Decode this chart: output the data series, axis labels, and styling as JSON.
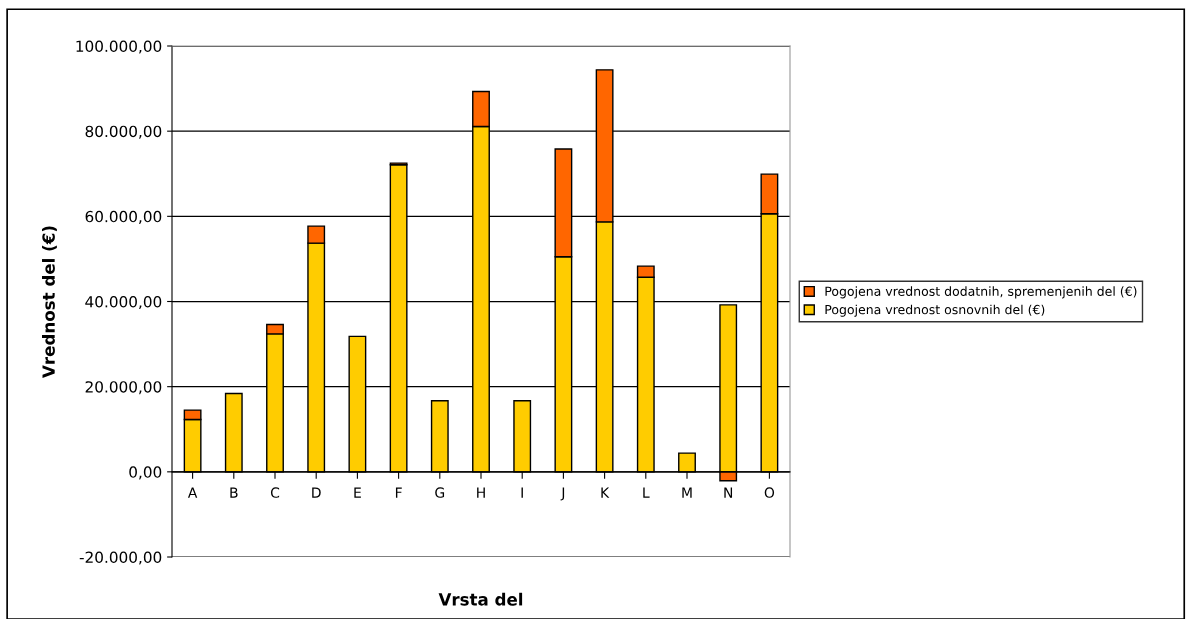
{
  "chart_data": {
    "type": "bar",
    "stacked": true,
    "xlabel": "Vrsta del",
    "ylabel": "Vrednost del (€)",
    "categories": [
      "A",
      "B",
      "C",
      "D",
      "E",
      "F",
      "G",
      "H",
      "I",
      "J",
      "K",
      "L",
      "M",
      "N",
      "O"
    ],
    "series": [
      {
        "name": "Pogojena vrednost osnovnih del (€)",
        "color": "#ffcc00",
        "values": [
          12300,
          18400,
          32400,
          53700,
          31800,
          72100,
          16700,
          81100,
          16700,
          50500,
          58700,
          45700,
          4400,
          39200,
          60600
        ]
      },
      {
        "name": "Pogojena vrednost dodatnih, spremenjenih del (€)",
        "color": "#ff6600",
        "values": [
          2200,
          null,
          2200,
          4000,
          null,
          400,
          null,
          8200,
          null,
          25300,
          35700,
          2600,
          null,
          -2100,
          9300
        ]
      }
    ],
    "ylim": [
      -20000,
      100000
    ],
    "yticks": [
      {
        "value": -20000,
        "label": "-20.000,00"
      },
      {
        "value": 0,
        "label": "0,00"
      },
      {
        "value": 20000,
        "label": "20.000,00"
      },
      {
        "value": 40000,
        "label": "40.000,00"
      },
      {
        "value": 60000,
        "label": "60.000,00"
      },
      {
        "value": 80000,
        "label": "80.000,00"
      },
      {
        "value": 100000,
        "label": "100.000,00"
      }
    ],
    "grid": "y",
    "legend": "right"
  }
}
